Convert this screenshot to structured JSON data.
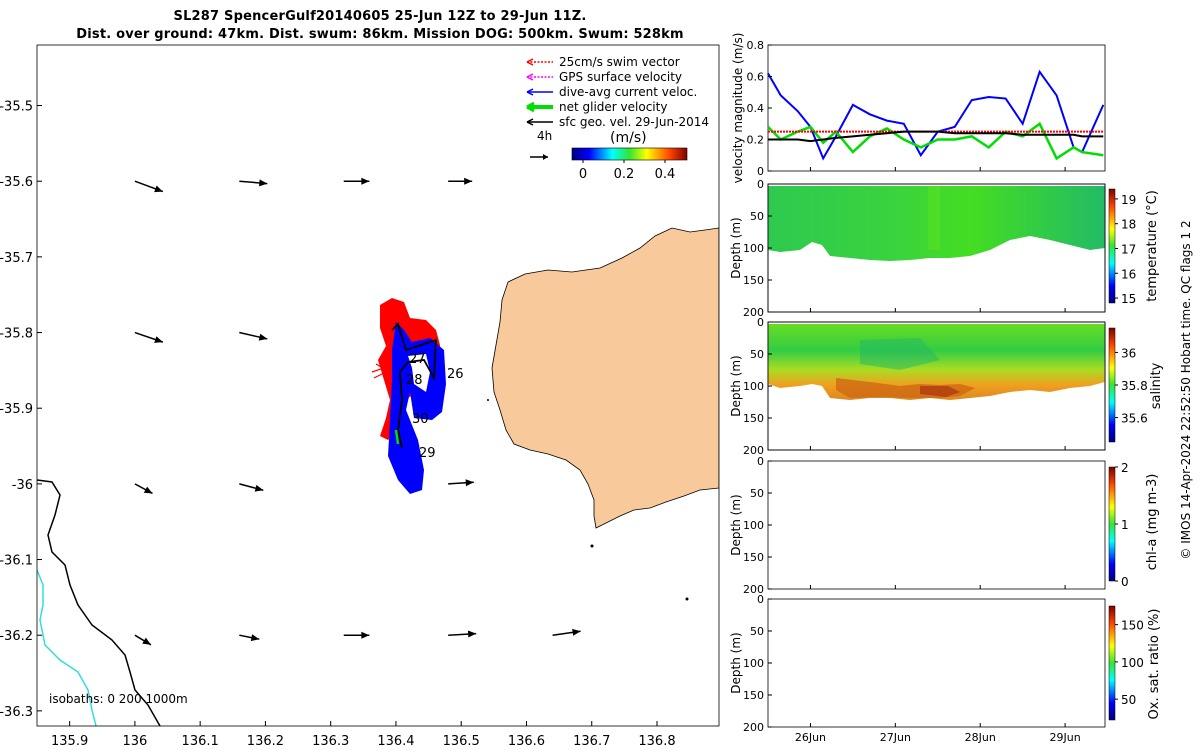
{
  "header": {
    "line1": "SL287 SpencerGulf20140605 25-Jun 12Z to 29-Jun 11Z.",
    "line2": "Dist. over ground: 47km. Dist. swum: 86km. Mission DOG: 500km. Swum: 528km"
  },
  "credit": "© IMOS 14-Apr-2024 22:52:50 Hobart time. QC flags 1  2",
  "map": {
    "x_ticks": [
      "135.9",
      "136",
      "136.1",
      "136.2",
      "136.3",
      "136.4",
      "136.5",
      "136.6",
      "136.7",
      "136.8"
    ],
    "y_ticks": [
      "-35.5",
      "-35.6",
      "-35.7",
      "-35.8",
      "-35.9",
      "-36",
      "-36.1",
      "-36.2",
      "-36.3"
    ],
    "xlim": [
      135.85,
      136.895
    ],
    "ylim": [
      -36.32,
      -35.42
    ],
    "legend": [
      {
        "label": "25cm/s swim vector",
        "color": "#ff0000",
        "style": "dotted"
      },
      {
        "label": "GPS surface velocity",
        "color": "#ff00ff",
        "style": "dotted"
      },
      {
        "label": "dive-avg current veloc.",
        "color": "#0000ff",
        "style": "solid"
      },
      {
        "label": "net glider velocity",
        "color": "#00dd00",
        "style": "thick"
      },
      {
        "label": "sfc geo. vel. 29-Jun-2014",
        "color": "#000000",
        "style": "solid"
      }
    ],
    "scale_label": "4h",
    "colorbar": {
      "title": "(m/s)",
      "ticks": [
        "0",
        "0.2",
        "0.4"
      ],
      "range": [
        0,
        0.5
      ]
    },
    "day_labels": [
      "26",
      "27",
      "28",
      "29"
    ],
    "day_label_28b": "30",
    "isobaths_label": "isobaths: 0   200  1000m",
    "colors": {
      "land": "#f8c99b",
      "isobath_200": "#000000",
      "isobath_1000": "#33dddd",
      "track_swim": "#ff0000",
      "track_current": "#0000ff",
      "track_net": "#00dd00"
    }
  },
  "panels": {
    "velocity": {
      "ylabel": "velocity magnitude (m/s)",
      "ylim": [
        0,
        0.8
      ],
      "y_ticks": [
        "0",
        "0.2",
        "0.4",
        "0.6",
        "0.8"
      ]
    },
    "temperature": {
      "ylabel": "Depth (m)",
      "y_ticks": [
        "0",
        "50",
        "100",
        "150",
        "200"
      ],
      "cbar_label": "temperature (°C)",
      "cbar_ticks": [
        "15",
        "16",
        "17",
        "18",
        "19"
      ],
      "cbar_range": [
        14.8,
        19.4
      ]
    },
    "salinity": {
      "ylabel": "Depth (m)",
      "y_ticks": [
        "0",
        "50",
        "100",
        "150",
        "200"
      ],
      "cbar_label": "salinity",
      "cbar_ticks": [
        "35.6",
        "35.8",
        "36"
      ],
      "cbar_range": [
        35.45,
        36.15
      ]
    },
    "chla": {
      "ylabel": "Depth (m)",
      "y_ticks": [
        "0",
        "50",
        "100",
        "150",
        "200"
      ],
      "cbar_label": "chl-a (mg m-3)",
      "cbar_ticks": [
        "0",
        "1",
        "2"
      ],
      "cbar_range": [
        0,
        2
      ]
    },
    "oxsat": {
      "ylabel": "Depth (m)",
      "y_ticks": [
        "0",
        "50",
        "100",
        "150",
        "200"
      ],
      "cbar_label": "Ox. sat. ratio (%)",
      "cbar_ticks": [
        "50",
        "100",
        "150"
      ],
      "cbar_range": [
        22,
        175
      ]
    },
    "x_ticks": [
      "26Jun",
      "27Jun",
      "28Jun",
      "29Jun"
    ]
  },
  "chart_data": [
    {
      "type": "scatter",
      "title": "SL287 SpencerGulf20140605 25-Jun 12Z to 29-Jun 11Z.",
      "xlabel": "",
      "ylabel": "",
      "xlim": [
        135.85,
        136.895
      ],
      "ylim": [
        -36.32,
        -35.42
      ],
      "note": "map of glider track with surface geostrophic velocity arrows",
      "arrows": [
        {
          "lon": 136.0,
          "lat": -35.6,
          "u": 0.035,
          "v": -0.013
        },
        {
          "lon": 136.16,
          "lat": -35.6,
          "u": 0.035,
          "v": -0.003
        },
        {
          "lon": 136.32,
          "lat": -35.6,
          "u": 0.032,
          "v": 0
        },
        {
          "lon": 136.48,
          "lat": -35.6,
          "u": 0.03,
          "v": 0
        },
        {
          "lon": 136.0,
          "lat": -35.8,
          "u": 0.035,
          "v": -0.012
        },
        {
          "lon": 136.16,
          "lat": -35.8,
          "u": 0.035,
          "v": -0.008
        },
        {
          "lon": 136.0,
          "lat": -36.0,
          "u": 0.022,
          "v": -0.012
        },
        {
          "lon": 136.16,
          "lat": -36.0,
          "u": 0.03,
          "v": -0.008
        },
        {
          "lon": 136.48,
          "lat": -36.0,
          "u": 0.032,
          "v": 0.002
        },
        {
          "lon": 136.0,
          "lat": -36.2,
          "u": 0.02,
          "v": -0.012
        },
        {
          "lon": 136.16,
          "lat": -36.2,
          "u": 0.025,
          "v": -0.005
        },
        {
          "lon": 136.32,
          "lat": -36.2,
          "u": 0.032,
          "v": 0
        },
        {
          "lon": 136.48,
          "lat": -36.2,
          "u": 0.035,
          "v": 0.002
        },
        {
          "lon": 136.64,
          "lat": -36.2,
          "u": 0.035,
          "v": 0.005
        }
      ]
    },
    {
      "type": "line",
      "title": "",
      "xlabel": "",
      "ylabel": "velocity magnitude (m/s)",
      "x": [
        25.5,
        25.65,
        25.85,
        26.0,
        26.15,
        26.3,
        26.5,
        26.7,
        26.9,
        27.1,
        27.3,
        27.5,
        27.7,
        27.9,
        28.1,
        28.3,
        28.5,
        28.7,
        28.9,
        29.1,
        29.2,
        29.45
      ],
      "series": [
        {
          "color": "#0000ff",
          "values": [
            0.62,
            0.48,
            0.38,
            0.28,
            0.08,
            0.22,
            0.42,
            0.36,
            0.32,
            0.3,
            0.1,
            0.25,
            0.28,
            0.45,
            0.47,
            0.46,
            0.3,
            0.63,
            0.48,
            0.15,
            0.12,
            0.42
          ]
        },
        {
          "color": "#00dd00",
          "values": [
            0.28,
            0.2,
            0.25,
            0.28,
            0.18,
            0.25,
            0.12,
            0.22,
            0.27,
            0.2,
            0.15,
            0.2,
            0.2,
            0.22,
            0.15,
            0.25,
            0.22,
            0.3,
            0.08,
            0.15,
            0.12,
            0.1
          ]
        },
        {
          "color": "#ff0000",
          "values": [
            0.25,
            0.25,
            0.25,
            0.25,
            0.25,
            0.25,
            0.25,
            0.25,
            0.25,
            0.25,
            0.25,
            0.25,
            0.25,
            0.25,
            0.25,
            0.25,
            0.25,
            0.25,
            0.25,
            0.25,
            0.25,
            0.25
          ]
        },
        {
          "color": "#000000",
          "values": [
            0.2,
            0.2,
            0.2,
            0.19,
            0.2,
            0.21,
            0.22,
            0.23,
            0.24,
            0.25,
            0.25,
            0.25,
            0.24,
            0.24,
            0.24,
            0.24,
            0.23,
            0.23,
            0.23,
            0.23,
            0.22,
            0.22
          ]
        }
      ],
      "ylim": [
        0,
        0.8
      ]
    }
  ]
}
